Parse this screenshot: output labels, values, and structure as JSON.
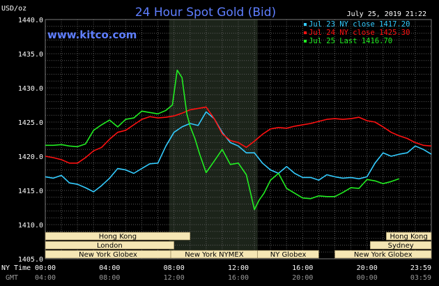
{
  "header": {
    "title": "24 Hour Spot Gold (Bid)",
    "timestamp": "July 25, 2019 21:22",
    "brand": "www.kitco.com",
    "unit": "USD/oz"
  },
  "colors": {
    "background": "#000000",
    "grid": "#5a5a5a",
    "title": "#5f7fff",
    "series_jul23": "#33ccff",
    "series_jul24": "#ff1111",
    "series_jul25": "#22ee22",
    "session_box": "#f5e6b4",
    "highlight": "#1c241a"
  },
  "axis_labels": {
    "ny_time": "NY Time",
    "gmt": "GMT"
  },
  "chart_data": {
    "type": "line",
    "title": "24 Hour Spot Gold (Bid)",
    "ylabel": "USD/oz",
    "ylim": [
      1405,
      1440
    ],
    "yticks": [
      "1405.0",
      "1410.0",
      "1415.0",
      "1420.0",
      "1425.0",
      "1430.0",
      "1435.0",
      "1440.0"
    ],
    "xlim": [
      0,
      24
    ],
    "xticks_ny": [
      "00:00",
      "04:00",
      "08:00",
      "12:00",
      "16:00",
      "20:00",
      "23:59"
    ],
    "xticks_gmt": [
      "04:00",
      "08:00",
      "12:00",
      "16:00",
      "20:00",
      "00:00",
      "03:59"
    ],
    "grid": true,
    "highlight_hours": [
      7.7,
      13.2
    ],
    "legend_position": "top-right",
    "series": [
      {
        "name": "Jul 23 NY close 1417.20",
        "color_key": "series_jul23",
        "x": [
          0,
          0.5,
          1,
          1.5,
          2,
          2.5,
          3,
          3.5,
          4,
          4.5,
          5,
          5.5,
          6,
          6.5,
          7,
          7.5,
          8,
          8.5,
          9,
          9.5,
          10,
          10.5,
          11,
          11.5,
          12,
          12.5,
          13,
          13.5,
          14,
          14.5,
          15,
          15.5,
          16,
          16.5,
          17,
          17.5,
          18,
          18.5,
          19,
          19.5,
          20,
          20.5,
          21,
          21.5,
          22,
          22.5,
          23,
          23.5,
          24
        ],
        "values": [
          1417,
          1416.8,
          1417.2,
          1416.1,
          1415.9,
          1415.4,
          1414.8,
          1415.7,
          1416.8,
          1418.2,
          1418,
          1417.5,
          1418.2,
          1418.9,
          1419,
          1421.5,
          1423.5,
          1424.3,
          1424.8,
          1424.5,
          1426.5,
          1425.5,
          1423.5,
          1422,
          1421.5,
          1420.5,
          1420.5,
          1419,
          1418,
          1417.5,
          1418.5,
          1417.5,
          1416.9,
          1416.9,
          1416.5,
          1417.3,
          1417,
          1416.8,
          1416.9,
          1416.7,
          1417,
          1419,
          1420.5,
          1420,
          1420.3,
          1420.5,
          1421.5,
          1421,
          1420.3
        ]
      },
      {
        "name": "Jul 24 NY close 1425.30",
        "color_key": "series_jul24",
        "x": [
          0,
          0.5,
          1,
          1.5,
          2,
          2.5,
          3,
          3.5,
          4,
          4.5,
          5,
          5.5,
          6,
          6.5,
          7,
          7.5,
          8,
          8.5,
          9,
          9.5,
          10,
          10.5,
          11,
          11.5,
          12,
          12.5,
          13,
          13.5,
          14,
          14.5,
          15,
          15.5,
          16,
          16.5,
          17,
          17.5,
          18,
          18.5,
          19,
          19.5,
          20,
          20.5,
          21,
          21.5,
          22,
          22.5,
          23,
          23.5,
          24
        ],
        "values": [
          1420,
          1419.8,
          1419.5,
          1419,
          1419,
          1419.8,
          1420.8,
          1421.3,
          1422.5,
          1423.5,
          1423.8,
          1424.6,
          1425.4,
          1425.8,
          1425.6,
          1425.7,
          1425.9,
          1426.3,
          1426.8,
          1427,
          1427.2,
          1425.5,
          1423.3,
          1422.3,
          1422,
          1421.3,
          1422.2,
          1423.2,
          1424,
          1424.2,
          1424.1,
          1424.4,
          1424.6,
          1424.8,
          1425.1,
          1425.4,
          1425.5,
          1425.4,
          1425.5,
          1425.7,
          1425.2,
          1425,
          1424.3,
          1423.5,
          1423,
          1422.6,
          1422,
          1421.6,
          1421.5
        ]
      },
      {
        "name": "Jul 25 Last 1416.70",
        "color_key": "series_jul25",
        "x": [
          0,
          0.5,
          1,
          1.5,
          2,
          2.5,
          3,
          3.5,
          4,
          4.5,
          5,
          5.5,
          6,
          6.5,
          7,
          7.5,
          7.9,
          8.2,
          8.5,
          8.8,
          9,
          9.3,
          9.6,
          10,
          10.5,
          11,
          11.5,
          12,
          12.5,
          13,
          13.3,
          13.6,
          14,
          14.5,
          15,
          15.5,
          16,
          16.5,
          17,
          17.5,
          18,
          18.5,
          19,
          19.5,
          20,
          20.5,
          21,
          21.5,
          22
        ],
        "values": [
          1421.6,
          1421.6,
          1421.7,
          1421.5,
          1421.4,
          1421.8,
          1423.8,
          1424.6,
          1425.3,
          1424.3,
          1425.4,
          1425.6,
          1426.6,
          1426.4,
          1426.2,
          1426.7,
          1427.5,
          1432.6,
          1431.5,
          1426.2,
          1424.4,
          1422.6,
          1420.3,
          1417.6,
          1419.3,
          1421,
          1418.8,
          1419,
          1417.3,
          1412.2,
          1413.6,
          1414.6,
          1416.5,
          1417.5,
          1415.3,
          1414.6,
          1413.9,
          1413.8,
          1414.2,
          1414.1,
          1414.1,
          1414.7,
          1415.4,
          1415.3,
          1416.6,
          1416.4,
          1416,
          1416.3,
          1416.7
        ]
      }
    ]
  },
  "sessions": [
    {
      "label": "Hong Kong",
      "start": 0,
      "end": 9
    },
    {
      "label": "Hong Kong",
      "start": 21.2,
      "end": 24
    },
    {
      "label": "London",
      "start": 0,
      "end": 8.0
    },
    {
      "label": "London",
      "start": 20.2,
      "end": 24
    },
    {
      "label": "Sydney",
      "start": 20.2,
      "end": 24
    },
    {
      "label": "New York Globex",
      "start": 0,
      "end": 7.8
    },
    {
      "label": "New York NYMEX",
      "start": 7.8,
      "end": 13.2
    },
    {
      "label": "NY Globex",
      "start": 13.2,
      "end": 17.0
    },
    {
      "label": "New York Globex",
      "start": 18.0,
      "end": 24
    }
  ]
}
